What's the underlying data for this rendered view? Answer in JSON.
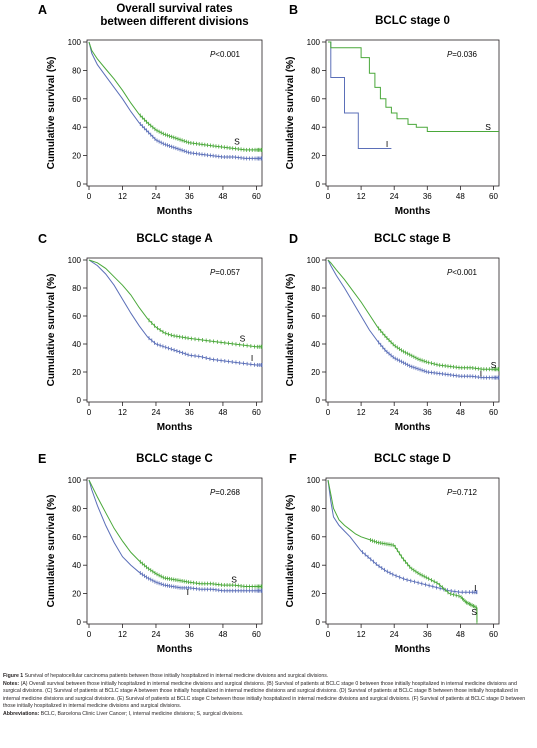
{
  "colors": {
    "internal": "#5b6fb8",
    "surgical": "#4aa83a",
    "axis": "#231f20"
  },
  "chart_data": [
    {
      "panel_label": "A",
      "type": "line",
      "title_lines": [
        "Overall survival rates",
        "between different divisions"
      ],
      "xlabel": "Months",
      "ylabel": "Cumulative survival (%)",
      "xlim": [
        0,
        62
      ],
      "ylim": [
        0,
        100
      ],
      "xticks": [
        0,
        12,
        24,
        36,
        48,
        60
      ],
      "yticks": [
        0,
        20,
        40,
        60,
        80,
        100
      ],
      "annotation": "P<0.001",
      "grid": false,
      "series": [
        {
          "name": "I",
          "label_at": null,
          "censor_every": 4,
          "x": [
            0,
            1,
            3,
            6,
            9,
            12,
            15,
            18,
            21,
            24,
            27,
            30,
            33,
            36,
            40,
            44,
            48,
            52,
            56,
            60,
            62
          ],
          "y": [
            100,
            92,
            84,
            76,
            68,
            60,
            51,
            43,
            37,
            31,
            28,
            26,
            24,
            22,
            21,
            20,
            19,
            19,
            18,
            18,
            18
          ]
        },
        {
          "name": "S",
          "label_at": [
            52,
            30
          ],
          "censor_every": 4,
          "x": [
            0,
            1,
            3,
            6,
            9,
            12,
            15,
            18,
            21,
            24,
            27,
            30,
            33,
            36,
            40,
            44,
            48,
            52,
            56,
            60,
            62
          ],
          "y": [
            100,
            94,
            88,
            81,
            74,
            66,
            57,
            49,
            43,
            38,
            35,
            33,
            31,
            29,
            28,
            27,
            26,
            25,
            24,
            24,
            24
          ]
        }
      ]
    },
    {
      "panel_label": "B",
      "type": "line",
      "title_lines": [
        "BCLC stage 0"
      ],
      "xlabel": "Months",
      "ylabel": "Cumulative survival (%)",
      "xlim": [
        0,
        62
      ],
      "ylim": [
        0,
        100
      ],
      "xticks": [
        0,
        12,
        24,
        36,
        48,
        60
      ],
      "yticks": [
        0,
        20,
        40,
        60,
        80,
        100
      ],
      "annotation": "P=0.036",
      "grid": false,
      "series": [
        {
          "name": "I",
          "label_at": [
            21,
            28
          ],
          "censor_every": 0,
          "x": [
            0,
            1,
            1,
            6,
            6,
            11,
            11,
            23
          ],
          "y": [
            100,
            100,
            75,
            75,
            50,
            50,
            25,
            25
          ]
        },
        {
          "name": "S",
          "label_at": [
            57,
            40
          ],
          "censor_every": 0,
          "x": [
            0,
            1,
            1,
            12,
            12,
            15,
            15,
            17,
            17,
            19,
            19,
            21,
            21,
            23,
            23,
            25,
            25,
            29,
            29,
            32,
            32,
            36,
            36,
            62
          ],
          "y": [
            100,
            100,
            96,
            96,
            89,
            89,
            78,
            78,
            68,
            68,
            60,
            60,
            54,
            54,
            50,
            50,
            46,
            46,
            42,
            42,
            40,
            40,
            37,
            37
          ]
        }
      ]
    },
    {
      "panel_label": "C",
      "type": "line",
      "title_lines": [
        "BCLC stage A"
      ],
      "xlabel": "Months",
      "ylabel": "Cumulative survival (%)",
      "xlim": [
        0,
        62
      ],
      "ylim": [
        0,
        100
      ],
      "xticks": [
        0,
        12,
        24,
        36,
        48,
        60
      ],
      "yticks": [
        0,
        20,
        40,
        60,
        80,
        100
      ],
      "annotation": "P=0.057",
      "grid": false,
      "series": [
        {
          "name": "I",
          "label_at": [
            58,
            30
          ],
          "censor_every": 3,
          "x": [
            0,
            3,
            6,
            9,
            12,
            15,
            18,
            21,
            24,
            27,
            30,
            33,
            36,
            40,
            44,
            48,
            52,
            56,
            60,
            62
          ],
          "y": [
            100,
            96,
            90,
            82,
            72,
            62,
            53,
            45,
            40,
            38,
            36,
            34,
            32,
            31,
            29,
            28,
            27,
            26,
            25,
            25
          ]
        },
        {
          "name": "S",
          "label_at": [
            54,
            44
          ],
          "censor_every": 3,
          "x": [
            0,
            3,
            6,
            9,
            12,
            15,
            18,
            21,
            24,
            27,
            30,
            33,
            36,
            40,
            44,
            48,
            52,
            56,
            60,
            62
          ],
          "y": [
            100,
            98,
            94,
            88,
            82,
            75,
            66,
            58,
            52,
            48,
            46,
            45,
            44,
            43,
            42,
            41,
            40,
            39,
            38,
            38
          ]
        }
      ]
    },
    {
      "panel_label": "D",
      "type": "line",
      "title_lines": [
        "BCLC stage B"
      ],
      "xlabel": "Months",
      "ylabel": "Cumulative survival (%)",
      "xlim": [
        0,
        62
      ],
      "ylim": [
        0,
        100
      ],
      "xticks": [
        0,
        12,
        24,
        36,
        48,
        60
      ],
      "yticks": [
        0,
        20,
        40,
        60,
        80,
        100
      ],
      "annotation": "P<0.001",
      "grid": false,
      "series": [
        {
          "name": "I",
          "label_at": [
            55,
            19
          ],
          "censor_every": 4,
          "x": [
            0,
            1,
            3,
            6,
            9,
            12,
            15,
            18,
            21,
            24,
            27,
            30,
            33,
            36,
            40,
            44,
            48,
            52,
            56,
            60,
            62
          ],
          "y": [
            100,
            96,
            89,
            80,
            70,
            60,
            50,
            42,
            35,
            30,
            27,
            24,
            22,
            20,
            19,
            18,
            17,
            17,
            16,
            16,
            16
          ]
        },
        {
          "name": "S",
          "label_at": [
            59,
            25
          ],
          "censor_every": 4,
          "x": [
            0,
            1,
            3,
            6,
            9,
            12,
            15,
            18,
            21,
            24,
            27,
            30,
            33,
            36,
            40,
            44,
            48,
            52,
            56,
            60,
            62
          ],
          "y": [
            100,
            98,
            93,
            86,
            78,
            70,
            61,
            52,
            45,
            39,
            35,
            32,
            29,
            27,
            25,
            24,
            23,
            23,
            22,
            22,
            22
          ]
        }
      ]
    },
    {
      "panel_label": "E",
      "type": "line",
      "title_lines": [
        "BCLC stage C"
      ],
      "xlabel": "Months",
      "ylabel": "Cumulative survival (%)",
      "xlim": [
        0,
        62
      ],
      "ylim": [
        0,
        100
      ],
      "xticks": [
        0,
        12,
        24,
        36,
        48,
        60
      ],
      "yticks": [
        0,
        20,
        40,
        60,
        80,
        100
      ],
      "annotation": "P=0.268",
      "grid": false,
      "series": [
        {
          "name": "I",
          "label_at": [
            35,
            21
          ],
          "censor_every": 4,
          "x": [
            0,
            1,
            3,
            6,
            9,
            12,
            15,
            18,
            21,
            24,
            27,
            30,
            33,
            36,
            40,
            44,
            48,
            52,
            56,
            60,
            62
          ],
          "y": [
            100,
            93,
            82,
            68,
            56,
            46,
            40,
            35,
            31,
            28,
            26,
            25,
            24,
            24,
            23,
            23,
            22,
            22,
            22,
            22,
            22
          ]
        },
        {
          "name": "S",
          "label_at": [
            51,
            30
          ],
          "censor_every": 4,
          "x": [
            0,
            1,
            3,
            6,
            9,
            12,
            15,
            18,
            21,
            24,
            27,
            30,
            33,
            36,
            40,
            44,
            48,
            52,
            56,
            60,
            62
          ],
          "y": [
            100,
            96,
            88,
            77,
            66,
            57,
            49,
            43,
            38,
            34,
            31,
            30,
            29,
            28,
            27,
            27,
            26,
            26,
            25,
            25,
            25
          ]
        }
      ]
    },
    {
      "panel_label": "F",
      "type": "line",
      "title_lines": [
        "BCLC stage D"
      ],
      "xlabel": "Months",
      "ylabel": "Cumulative survival (%)",
      "xlim": [
        0,
        62
      ],
      "ylim": [
        0,
        100
      ],
      "xticks": [
        0,
        12,
        24,
        36,
        48,
        60
      ],
      "yticks": [
        0,
        20,
        40,
        60,
        80,
        100
      ],
      "annotation": "P=0.712",
      "grid": false,
      "series": [
        {
          "name": "I",
          "label_at": [
            53,
            24
          ],
          "censor_every": 3,
          "x": [
            0,
            1,
            2,
            4,
            6,
            8,
            10,
            12,
            15,
            18,
            21,
            24,
            28,
            32,
            36,
            40,
            44,
            48,
            52,
            54
          ],
          "y": [
            100,
            85,
            74,
            68,
            64,
            60,
            55,
            50,
            45,
            40,
            36,
            33,
            30,
            28,
            26,
            24,
            22,
            21,
            21,
            21
          ]
        },
        {
          "name": "S",
          "label_at": [
            52,
            7
          ],
          "censor_every": 4,
          "x": [
            0,
            1,
            2,
            4,
            6,
            8,
            10,
            12,
            15,
            18,
            21,
            24,
            27,
            30,
            33,
            36,
            40,
            44,
            48,
            50,
            52,
            54,
            54
          ],
          "y": [
            100,
            90,
            80,
            72,
            68,
            65,
            62,
            60,
            58,
            56,
            55,
            54,
            45,
            38,
            34,
            31,
            27,
            20,
            18,
            14,
            12,
            10,
            0
          ]
        }
      ]
    }
  ],
  "caption": {
    "figure_label": "Figure 1",
    "text": "Survival of hepatocellular carcinoma patients between those initially hospitalized in internal medicine divisions and surgical divisions.",
    "notes_label": "Notes:",
    "notes_text": "(A) Overall survival between those initially hospitalized in internal medicine divisions and surgical divisions. (B) Survival of patients at BCLC stage 0 between those initially hospitalized in internal medicine divisions and surgical divisions. (C) Survival of patients at BCLC stage A between those initially hospitalized in internal medicine divisions and surgical divisions. (D) Survival of patients at BCLC stage B between those initially hospitalized in internal medicine divisions and surgical divisions. (E) Survival of patients at BCLC stage C between those initially hospitalized in internal medicine divisions and surgical divisions. (F) Survival of patients at BCLC stage D between those initially hospitalized in internal medicine divisions and surgical divisions.",
    "abbrev_label": "Abbreviations:",
    "abbrev_text": "BCLC, Barcelona Clinic Liver Cancer; I, internal medicine divisions; S, surgical divisions."
  }
}
